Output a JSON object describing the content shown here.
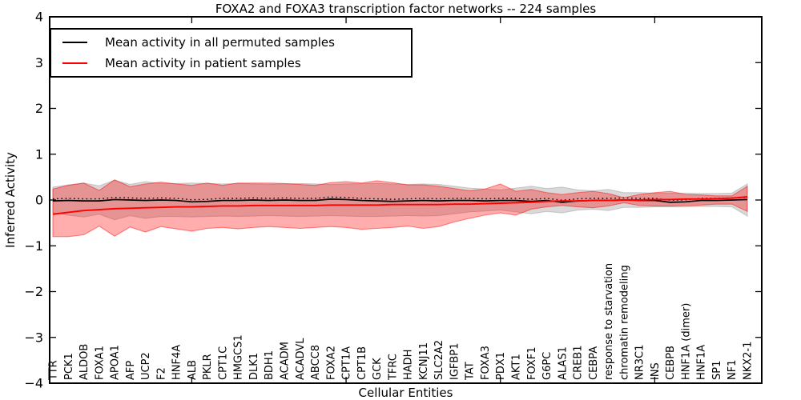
{
  "title": "FOXA2 and FOXA3 transcription factor networks -- 224 samples",
  "legend": {
    "items": [
      {
        "label": "Mean activity in all permuted samples",
        "color": "#000000"
      },
      {
        "label": "Mean activity in patient samples",
        "color": "#ff0000"
      }
    ]
  },
  "chart_data": {
    "type": "line",
    "title": "FOXA2 and FOXA3 transcription factor networks -- 224 samples",
    "xlabel": "Cellular Entities",
    "ylabel": "Inferred Activity",
    "ylim": [
      -4,
      4
    ],
    "yticks": [
      4,
      3,
      2,
      1,
      0,
      -1,
      -2,
      -3,
      -4
    ],
    "x_major_ticks_at_index": [
      9,
      19,
      29,
      39
    ],
    "grid": false,
    "legend_position": "upper left",
    "x_tick_labels_rotated_90_inside_plot": true,
    "zero_dotted_line": true,
    "categories": [
      "TTR",
      "PCK1",
      "ALDOB",
      "FOXA1",
      "APOA1",
      "AFP",
      "UCP2",
      "F2",
      "HNF4A",
      "ALB",
      "PKLR",
      "CPT1C",
      "HMGCS1",
      "DLK1",
      "BDH1",
      "ACADM",
      "ACADVL",
      "ABCC8",
      "FOXA2",
      "CPT1A",
      "CPT1B",
      "GCK",
      "TFRC",
      "HADH",
      "KCNJ11",
      "SLC2A2",
      "IGFBP1",
      "TAT",
      "FOXA3",
      "PDX1",
      "AKT1",
      "FOXF1",
      "G6PC",
      "ALAS1",
      "CREB1",
      "CEBPA",
      "response to starvation",
      "chromatin remodeling",
      "NR3C1",
      "INS",
      "CEBPB",
      "HNF1A (dimer)",
      "HNF1A",
      "SP1",
      "NF1",
      "NKX2-1"
    ],
    "series": [
      {
        "name": "Mean activity in all permuted samples",
        "color": "#000000",
        "values": [
          -0.02,
          -0.01,
          -0.02,
          -0.02,
          0.01,
          0.0,
          -0.01,
          0.0,
          -0.01,
          -0.04,
          -0.03,
          -0.01,
          -0.01,
          0.0,
          -0.01,
          0.0,
          -0.01,
          -0.01,
          0.02,
          0.01,
          -0.01,
          -0.02,
          -0.03,
          -0.02,
          -0.01,
          -0.02,
          -0.01,
          -0.01,
          -0.02,
          -0.01,
          -0.01,
          -0.03,
          -0.01,
          -0.05,
          -0.02,
          -0.01,
          -0.01,
          0.0,
          -0.01,
          -0.01,
          -0.05,
          -0.04,
          -0.01,
          -0.01,
          0.0,
          0.01
        ]
      },
      {
        "name": "Mean activity in patient samples",
        "color": "#ff0000",
        "values": [
          -0.31,
          -0.27,
          -0.23,
          -0.21,
          -0.19,
          -0.18,
          -0.17,
          -0.16,
          -0.15,
          -0.15,
          -0.14,
          -0.13,
          -0.13,
          -0.12,
          -0.12,
          -0.12,
          -0.12,
          -0.12,
          -0.11,
          -0.11,
          -0.11,
          -0.11,
          -0.1,
          -0.1,
          -0.1,
          -0.1,
          -0.09,
          -0.09,
          -0.08,
          -0.07,
          -0.06,
          -0.05,
          -0.03,
          -0.02,
          -0.02,
          -0.01,
          -0.01,
          0.0,
          0.0,
          0.01,
          0.01,
          0.02,
          0.02,
          0.03,
          0.04,
          0.07
        ]
      }
    ],
    "bands": [
      {
        "name": "permuted-samples-range",
        "color": "#aaaaaa",
        "opacity": 0.45,
        "upper": [
          0.28,
          0.33,
          0.37,
          0.31,
          0.43,
          0.34,
          0.4,
          0.36,
          0.36,
          0.37,
          0.36,
          0.35,
          0.36,
          0.35,
          0.34,
          0.35,
          0.36,
          0.35,
          0.34,
          0.35,
          0.36,
          0.36,
          0.35,
          0.34,
          0.35,
          0.34,
          0.3,
          0.26,
          0.24,
          0.22,
          0.26,
          0.3,
          0.25,
          0.28,
          0.22,
          0.2,
          0.23,
          0.16,
          0.16,
          0.15,
          0.15,
          0.15,
          0.14,
          0.14,
          0.15,
          0.35
        ],
        "lower": [
          -0.28,
          -0.33,
          -0.37,
          -0.31,
          -0.43,
          -0.34,
          -0.4,
          -0.36,
          -0.36,
          -0.37,
          -0.36,
          -0.35,
          -0.36,
          -0.35,
          -0.34,
          -0.35,
          -0.36,
          -0.35,
          -0.34,
          -0.35,
          -0.36,
          -0.36,
          -0.35,
          -0.34,
          -0.35,
          -0.34,
          -0.3,
          -0.26,
          -0.24,
          -0.22,
          -0.26,
          -0.3,
          -0.25,
          -0.28,
          -0.22,
          -0.2,
          -0.23,
          -0.16,
          -0.16,
          -0.15,
          -0.15,
          -0.15,
          -0.14,
          -0.14,
          -0.15,
          -0.35
        ]
      },
      {
        "name": "patient-samples-range",
        "color": "#ff0000",
        "opacity": 0.32,
        "upper": [
          0.24,
          0.32,
          0.37,
          0.21,
          0.44,
          0.29,
          0.35,
          0.39,
          0.35,
          0.32,
          0.37,
          0.32,
          0.37,
          0.37,
          0.37,
          0.36,
          0.34,
          0.32,
          0.38,
          0.4,
          0.37,
          0.42,
          0.38,
          0.33,
          0.33,
          0.3,
          0.25,
          0.2,
          0.24,
          0.35,
          0.19,
          0.23,
          0.16,
          0.12,
          0.16,
          0.19,
          0.14,
          0.05,
          0.12,
          0.16,
          0.19,
          0.12,
          0.11,
          0.09,
          0.09,
          0.3
        ],
        "lower": [
          -0.8,
          -0.8,
          -0.76,
          -0.57,
          -0.79,
          -0.59,
          -0.7,
          -0.58,
          -0.63,
          -0.68,
          -0.62,
          -0.6,
          -0.63,
          -0.6,
          -0.58,
          -0.6,
          -0.62,
          -0.6,
          -0.58,
          -0.6,
          -0.64,
          -0.62,
          -0.6,
          -0.57,
          -0.62,
          -0.58,
          -0.48,
          -0.4,
          -0.33,
          -0.28,
          -0.33,
          -0.2,
          -0.15,
          -0.12,
          -0.15,
          -0.17,
          -0.13,
          -0.06,
          -0.12,
          -0.13,
          -0.13,
          -0.12,
          -0.11,
          -0.09,
          -0.09,
          -0.25
        ]
      }
    ]
  }
}
